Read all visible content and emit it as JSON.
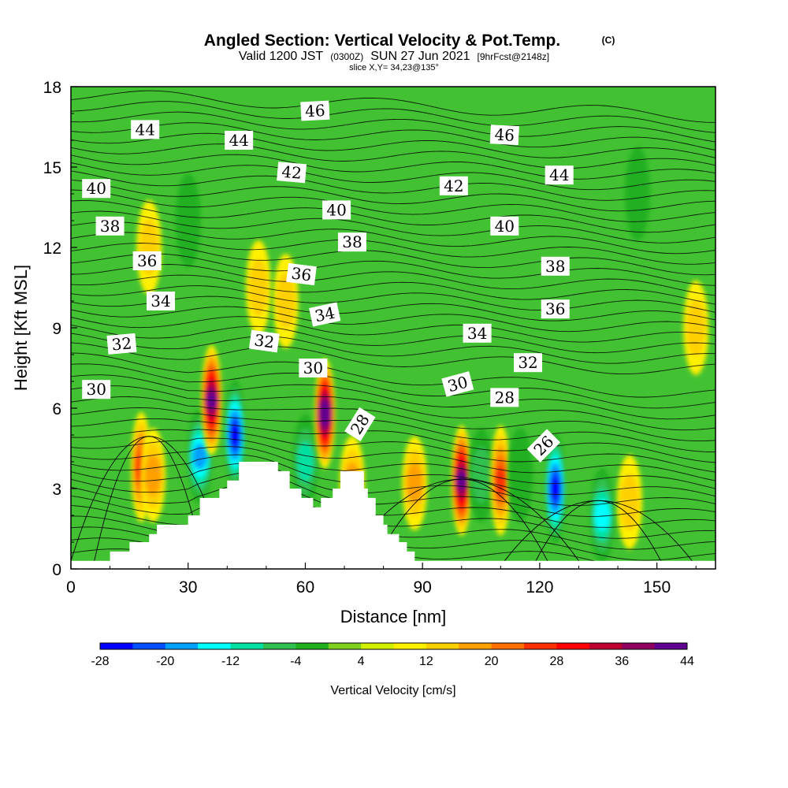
{
  "header": {
    "title": "Angled Section: Vertical Velocity & Pot.Temp.",
    "title_mark": "(C)",
    "valid_a": "Valid 1200 JST",
    "valid_b": "(0300Z)",
    "valid_c": "SUN 27 Jun 2021",
    "valid_d": "[9hrFcst@2148z]",
    "slice": "slice X,Y= 34,23@135°"
  },
  "chart_data": {
    "type": "heatmap",
    "xlabel": "Distance [nm]",
    "ylabel": "Height [Kft MSL]",
    "xlim": [
      0,
      165
    ],
    "ylim": [
      0,
      18
    ],
    "x_ticks": [
      0,
      30,
      60,
      90,
      120,
      150
    ],
    "y_ticks": [
      0,
      3,
      6,
      9,
      12,
      15,
      18
    ],
    "x_tick_labels": [
      "0",
      "30",
      "60",
      "90",
      "120",
      "150"
    ],
    "y_tick_labels": [
      "0",
      "3",
      "6",
      "9",
      "12",
      "15",
      "18"
    ],
    "grid": false,
    "colorbar": {
      "label": "Vertical Velocity [cm/s]",
      "tick_labels": [
        "-28",
        "-20",
        "-12",
        "-4",
        "4",
        "12",
        "20",
        "28",
        "36",
        "44"
      ],
      "tick_values": [
        -28,
        -20,
        -12,
        -4,
        4,
        12,
        20,
        28,
        36,
        44
      ],
      "colors": [
        "#0000ff",
        "#0050ff",
        "#00a0ff",
        "#00ffff",
        "#00e0a0",
        "#30c050",
        "#20b020",
        "#80d020",
        "#d0f000",
        "#fff000",
        "#ffd000",
        "#ffa000",
        "#ff7000",
        "#ff3000",
        "#ff0000",
        "#c00030",
        "#900060",
        "#600090"
      ]
    },
    "background_color": "#42c232",
    "w_features": [
      {
        "x": 18,
        "y": 3.8,
        "peak": 22
      },
      {
        "x": 21,
        "y": 3.5,
        "peak": 12
      },
      {
        "x": 33,
        "y": 4.2,
        "peak": -20
      },
      {
        "x": 36,
        "y": 6.3,
        "peak": 38
      },
      {
        "x": 42,
        "y": 5.0,
        "peak": -28
      },
      {
        "x": 55,
        "y": 10.0,
        "peak": 8
      },
      {
        "x": 60,
        "y": 4.0,
        "peak": -14
      },
      {
        "x": 65,
        "y": 5.8,
        "peak": 40
      },
      {
        "x": 72,
        "y": 3.2,
        "peak": 14
      },
      {
        "x": 88,
        "y": 3.2,
        "peak": 12
      },
      {
        "x": 100,
        "y": 3.3,
        "peak": 36
      },
      {
        "x": 105,
        "y": 3.5,
        "peak": -10
      },
      {
        "x": 110,
        "y": 3.3,
        "peak": 22
      },
      {
        "x": 115,
        "y": 3.5,
        "peak": -6
      },
      {
        "x": 124,
        "y": 3.0,
        "peak": -28
      },
      {
        "x": 136,
        "y": 2.0,
        "peak": -18
      },
      {
        "x": 143,
        "y": 2.5,
        "peak": 10
      },
      {
        "x": 20,
        "y": 12.0,
        "peak": 8
      },
      {
        "x": 30,
        "y": 13.0,
        "peak": -5
      },
      {
        "x": 48,
        "y": 10.5,
        "peak": 10
      },
      {
        "x": 145,
        "y": 14.0,
        "peak": -6
      },
      {
        "x": 160,
        "y": 9.0,
        "peak": 8
      }
    ],
    "terrain": [
      [
        0,
        0.3
      ],
      [
        10,
        0.3
      ],
      [
        10,
        0.65
      ],
      [
        15,
        0.65
      ],
      [
        15,
        1.0
      ],
      [
        20,
        1.0
      ],
      [
        20,
        1.3
      ],
      [
        22,
        1.3
      ],
      [
        22,
        1.65
      ],
      [
        30,
        1.65
      ],
      [
        30,
        2.0
      ],
      [
        33,
        2.0
      ],
      [
        33,
        2.65
      ],
      [
        38,
        2.65
      ],
      [
        38,
        3.0
      ],
      [
        40,
        3.0
      ],
      [
        40,
        3.3
      ],
      [
        43,
        3.3
      ],
      [
        43,
        4.0
      ],
      [
        53,
        4.0
      ],
      [
        53,
        3.65
      ],
      [
        56,
        3.65
      ],
      [
        56,
        3.0
      ],
      [
        59,
        3.0
      ],
      [
        59,
        2.65
      ],
      [
        62,
        2.65
      ],
      [
        62,
        2.3
      ],
      [
        64,
        2.3
      ],
      [
        64,
        2.65
      ],
      [
        67,
        2.65
      ],
      [
        67,
        3.0
      ],
      [
        69,
        3.0
      ],
      [
        69,
        3.65
      ],
      [
        75,
        3.65
      ],
      [
        75,
        3.0
      ],
      [
        76,
        3.0
      ],
      [
        76,
        2.65
      ],
      [
        78,
        2.65
      ],
      [
        78,
        2.0
      ],
      [
        80,
        2.0
      ],
      [
        80,
        1.65
      ],
      [
        81,
        1.65
      ],
      [
        81,
        1.3
      ],
      [
        84,
        1.3
      ],
      [
        84,
        1.0
      ],
      [
        86,
        1.0
      ],
      [
        86,
        0.65
      ],
      [
        88,
        0.65
      ],
      [
        88,
        0.3
      ],
      [
        165,
        0.3
      ]
    ],
    "contour_levels": [
      26,
      28,
      30,
      32,
      34,
      36,
      38,
      40,
      42,
      44,
      46
    ],
    "contour_labels": [
      {
        "text": "44",
        "x": 19,
        "y": 16.4,
        "rot": 0
      },
      {
        "text": "44",
        "x": 43,
        "y": 16.0,
        "rot": 0
      },
      {
        "text": "46",
        "x": 62.5,
        "y": 17.1,
        "rot": -3
      },
      {
        "text": "46",
        "x": 111,
        "y": 16.2,
        "rot": 3
      },
      {
        "text": "42",
        "x": 56.5,
        "y": 14.8,
        "rot": 5
      },
      {
        "text": "44",
        "x": 125,
        "y": 14.7,
        "rot": 0
      },
      {
        "text": "40",
        "x": 6.5,
        "y": 14.2,
        "rot": 0
      },
      {
        "text": "42",
        "x": 98,
        "y": 14.3,
        "rot": 0
      },
      {
        "text": "40",
        "x": 68,
        "y": 13.4,
        "rot": 0
      },
      {
        "text": "40",
        "x": 111,
        "y": 12.8,
        "rot": 0
      },
      {
        "text": "38",
        "x": 10,
        "y": 12.8,
        "rot": 0
      },
      {
        "text": "38",
        "x": 72,
        "y": 12.2,
        "rot": 0
      },
      {
        "text": "36",
        "x": 19.5,
        "y": 11.5,
        "rot": 0
      },
      {
        "text": "36",
        "x": 59,
        "y": 11.0,
        "rot": 7
      },
      {
        "text": "38",
        "x": 124,
        "y": 11.3,
        "rot": 0
      },
      {
        "text": "34",
        "x": 23,
        "y": 10.0,
        "rot": 0
      },
      {
        "text": "36",
        "x": 124,
        "y": 9.7,
        "rot": 0
      },
      {
        "text": "34",
        "x": 65,
        "y": 9.5,
        "rot": -12
      },
      {
        "text": "34",
        "x": 104,
        "y": 8.8,
        "rot": 0
      },
      {
        "text": "32",
        "x": 13,
        "y": 8.4,
        "rot": -5
      },
      {
        "text": "32",
        "x": 49.5,
        "y": 8.5,
        "rot": 8
      },
      {
        "text": "32",
        "x": 117,
        "y": 7.7,
        "rot": 0
      },
      {
        "text": "30",
        "x": 6.5,
        "y": 6.7,
        "rot": 0
      },
      {
        "text": "30",
        "x": 62,
        "y": 7.5,
        "rot": 0
      },
      {
        "text": "30",
        "x": 99,
        "y": 6.9,
        "rot": -15
      },
      {
        "text": "28",
        "x": 74,
        "y": 5.4,
        "rot": -58
      },
      {
        "text": "28",
        "x": 111,
        "y": 6.4,
        "rot": 0
      },
      {
        "text": "26",
        "x": 121,
        "y": 4.6,
        "rot": -45
      }
    ]
  }
}
